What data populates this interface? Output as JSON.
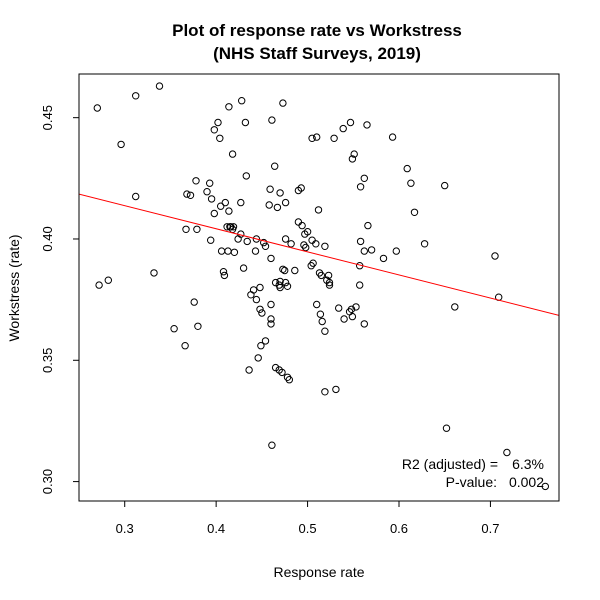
{
  "chart_data": {
    "type": "scatter",
    "title": "Plot of response rate vs  Workstress",
    "subtitle": "(NHS Staff Surveys, 2019)",
    "xlabel": "Response rate",
    "ylabel": "Workstress  (rate)",
    "xlim": [
      0.25,
      0.775
    ],
    "ylim": [
      0.292,
      0.468
    ],
    "xticks": [
      "0.3",
      "0.4",
      "0.5",
      "0.6",
      "0.7"
    ],
    "yticks": [
      "0.30",
      "0.35",
      "0.40",
      "0.45"
    ],
    "grid": false,
    "point_style": "open-circle",
    "colors": {
      "points": "#000000",
      "fit_line": "#ff0000",
      "frame": "#000000"
    },
    "fit_line": {
      "x": [
        0.25,
        0.775
      ],
      "y": [
        0.4185,
        0.3685
      ]
    },
    "annotations": {
      "r2_label": "R2 (adjusted) =",
      "r2_value": "6.3%",
      "p_label": "P-value:",
      "p_value": "0.002"
    },
    "series": [
      {
        "x": [
          0.27,
          0.296,
          0.312,
          0.338,
          0.414,
          0.402,
          0.428,
          0.473,
          0.432,
          0.461,
          0.398,
          0.404,
          0.418,
          0.433,
          0.378,
          0.39,
          0.393,
          0.395,
          0.372,
          0.368,
          0.398,
          0.41,
          0.414,
          0.427,
          0.458,
          0.47,
          0.476,
          0.467,
          0.464,
          0.459,
          0.416,
          0.418,
          0.444,
          0.427,
          0.367,
          0.379,
          0.394,
          0.408,
          0.46,
          0.454,
          0.452,
          0.443,
          0.434,
          0.482,
          0.473,
          0.469,
          0.493,
          0.49,
          0.494,
          0.5,
          0.505,
          0.51,
          0.512,
          0.529,
          0.539,
          0.515,
          0.519,
          0.523,
          0.509,
          0.505,
          0.521,
          0.524,
          0.513,
          0.506,
          0.504,
          0.547,
          0.551,
          0.549,
          0.565,
          0.558,
          0.562,
          0.562,
          0.558,
          0.566,
          0.57,
          0.557,
          0.593,
          0.613,
          0.609,
          0.617,
          0.628,
          0.583,
          0.597,
          0.557,
          0.534,
          0.54,
          0.546,
          0.548,
          0.553,
          0.46,
          0.448,
          0.47,
          0.475,
          0.47,
          0.478,
          0.43,
          0.409,
          0.406,
          0.42,
          0.419,
          0.424,
          0.441,
          0.438,
          0.444,
          0.448,
          0.45,
          0.46,
          0.46,
          0.446,
          0.436,
          0.376,
          0.38,
          0.354,
          0.366,
          0.272,
          0.282,
          0.332,
          0.312,
          0.415,
          0.405,
          0.524,
          0.51,
          0.514,
          0.516,
          0.519,
          0.531,
          0.549,
          0.562,
          0.519,
          0.48,
          0.472,
          0.465,
          0.469,
          0.478,
          0.449,
          0.454,
          0.461,
          0.486,
          0.497,
          0.476,
          0.49,
          0.413,
          0.412,
          0.652,
          0.718,
          0.76,
          0.705,
          0.709,
          0.661,
          0.65,
          0.476,
          0.465,
          0.496,
          0.498
        ],
        "y": [
          0.454,
          0.439,
          0.459,
          0.463,
          0.4545,
          0.448,
          0.457,
          0.456,
          0.448,
          0.449,
          0.445,
          0.4415,
          0.435,
          0.426,
          0.424,
          0.4195,
          0.423,
          0.4165,
          0.418,
          0.4185,
          0.4105,
          0.415,
          0.4115,
          0.415,
          0.414,
          0.419,
          0.415,
          0.413,
          0.43,
          0.4205,
          0.405,
          0.404,
          0.4,
          0.402,
          0.404,
          0.404,
          0.3995,
          0.3865,
          0.392,
          0.397,
          0.3985,
          0.395,
          0.399,
          0.398,
          0.3875,
          0.381,
          0.421,
          0.42,
          0.4055,
          0.403,
          0.4415,
          0.442,
          0.412,
          0.4415,
          0.4455,
          0.385,
          0.397,
          0.385,
          0.398,
          0.3995,
          0.383,
          0.382,
          0.386,
          0.39,
          0.389,
          0.448,
          0.435,
          0.433,
          0.447,
          0.4215,
          0.425,
          0.395,
          0.399,
          0.4055,
          0.3955,
          0.389,
          0.442,
          0.423,
          0.429,
          0.411,
          0.398,
          0.392,
          0.395,
          0.381,
          0.3715,
          0.367,
          0.37,
          0.371,
          0.372,
          0.373,
          0.371,
          0.3825,
          0.387,
          0.38,
          0.3805,
          0.388,
          0.385,
          0.395,
          0.3945,
          0.405,
          0.4,
          0.379,
          0.377,
          0.375,
          0.38,
          0.3695,
          0.365,
          0.367,
          0.351,
          0.346,
          0.374,
          0.364,
          0.363,
          0.356,
          0.381,
          0.383,
          0.386,
          0.4175,
          0.405,
          0.4135,
          0.381,
          0.373,
          0.369,
          0.366,
          0.362,
          0.338,
          0.368,
          0.365,
          0.337,
          0.342,
          0.345,
          0.347,
          0.346,
          0.343,
          0.356,
          0.358,
          0.315,
          0.387,
          0.402,
          0.4,
          0.407,
          0.395,
          0.405,
          0.322,
          0.312,
          0.298,
          0.393,
          0.376,
          0.372,
          0.422,
          0.382,
          0.382,
          0.3975,
          0.3965
        ]
      }
    ]
  }
}
